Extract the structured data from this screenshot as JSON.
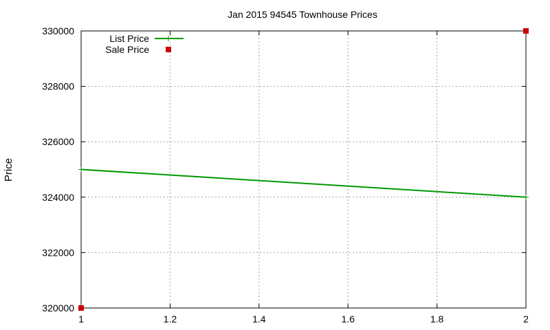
{
  "chart_data": {
    "type": "line",
    "title": "Jan 2015 94545 Townhouse Prices",
    "xlabel": "",
    "ylabel": "Price",
    "xlim": [
      1,
      2
    ],
    "ylim": [
      320000,
      330000
    ],
    "x_ticks": [
      1,
      1.2,
      1.4,
      1.6,
      1.8,
      2
    ],
    "x_tick_labels": [
      "1",
      "1.2",
      "1.4",
      "1.6",
      "1.8",
      "2"
    ],
    "y_ticks": [
      320000,
      322000,
      324000,
      326000,
      328000,
      330000
    ],
    "y_tick_labels": [
      "320000",
      "322000",
      "324000",
      "326000",
      "328000",
      "330000"
    ],
    "grid": true,
    "legend_position": "top-left",
    "series": [
      {
        "name": "List Price",
        "style": "linespoints",
        "marker": "plus",
        "color": "#009900",
        "points": [
          {
            "x": 1,
            "y": 325000
          },
          {
            "x": 2,
            "y": 324000
          }
        ]
      },
      {
        "name": "Sale Price",
        "style": "points",
        "marker": "square",
        "color": "#cc0000",
        "points": [
          {
            "x": 1,
            "y": 320000
          },
          {
            "x": 2,
            "y": 330000
          }
        ]
      }
    ]
  }
}
